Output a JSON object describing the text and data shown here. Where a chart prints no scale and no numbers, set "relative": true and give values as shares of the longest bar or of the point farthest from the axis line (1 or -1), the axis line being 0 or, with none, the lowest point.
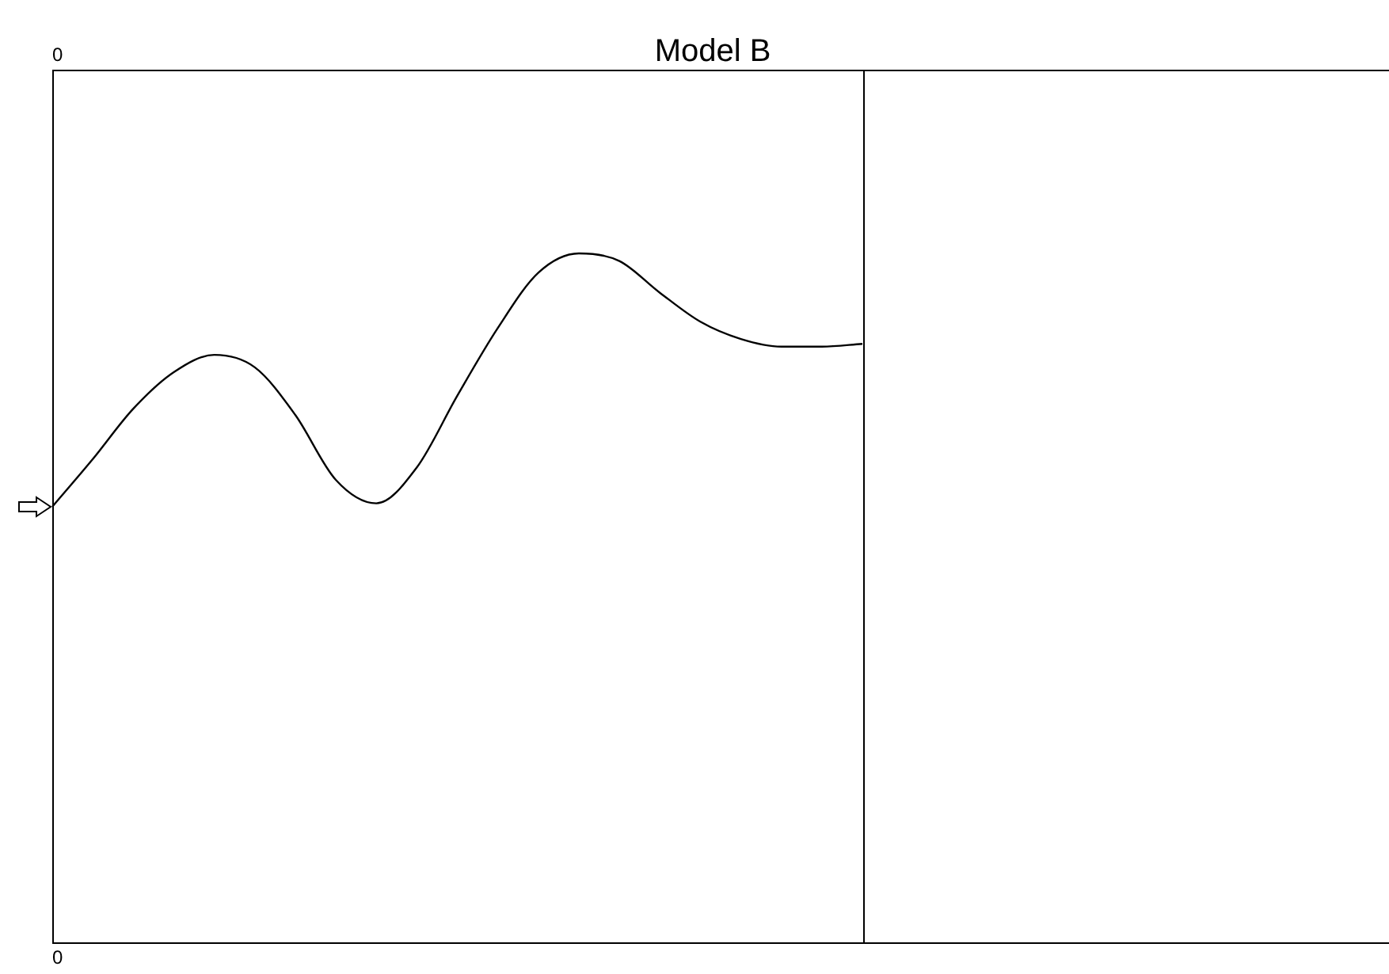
{
  "chart_data": {
    "type": "line",
    "title": "Model B",
    "relative": true,
    "categories": [
      null,
      null,
      null,
      null,
      null,
      null,
      null,
      null,
      null,
      null,
      null,
      null,
      null,
      null,
      null,
      null,
      null,
      null,
      null,
      null,
      null,
      null,
      null,
      null,
      null,
      null,
      null,
      null,
      null,
      null,
      null,
      null,
      null,
      null
    ],
    "series": [
      {
        "color": "#000000",
        "values": [
          0.633,
          0.702,
          0.775,
          0.828,
          0.853,
          0.835,
          0.766,
          0.672,
          0.638,
          0.69,
          0.794,
          0.892,
          0.972,
          1,
          0.989,
          0.943,
          0.901,
          0.876,
          0.865,
          0.865,
          0.869,
          null,
          null,
          null,
          null,
          null,
          null,
          null,
          null,
          null,
          null,
          null,
          null,
          null
        ]
      }
    ],
    "annotations": [
      "0",
      "0"
    ],
    "marker": "none",
    "line_style": "solid",
    "legend": false
  }
}
